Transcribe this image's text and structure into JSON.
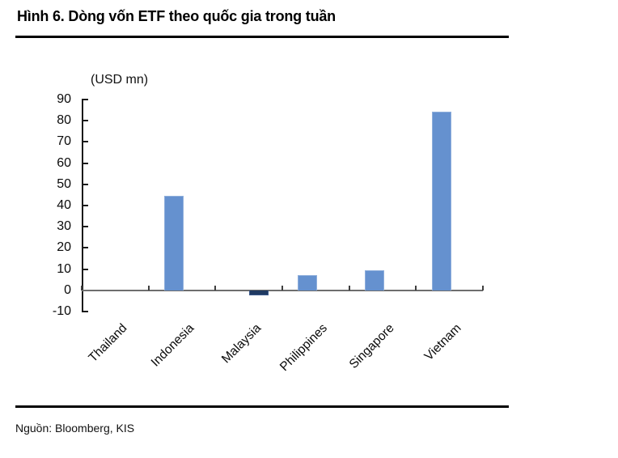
{
  "header": {
    "title": "Hình 6. Dòng vốn ETF theo quốc gia trong tuần"
  },
  "footer": {
    "source": "Nguồn: Bloomberg, KIS"
  },
  "colors": {
    "bar_positive": "#6591cf",
    "bar_negative": "#203a62",
    "axis": "#1a1a1a",
    "baseline": "#6e6e6e",
    "rule": "#000000"
  },
  "chart_data": {
    "type": "bar",
    "title": "Hình 6. Dòng vốn ETF theo quốc gia trong tuần",
    "unit": "(USD mn)",
    "categories": [
      "Thailand",
      "Indonesia",
      "Malaysia",
      "Philippines",
      "Singapore",
      "Vietnam"
    ],
    "values": [
      0,
      44.5,
      -2.5,
      7.3,
      9.6,
      84.3
    ],
    "bar_colors": [
      "#6591cf",
      "#6591cf",
      "#203a62",
      "#6591cf",
      "#6591cf",
      "#6591cf"
    ],
    "xlabel": "",
    "ylabel": "(USD mn)",
    "ylim": [
      -10,
      90
    ],
    "y_tick_step": 10,
    "y_tick_labels": [
      "90",
      "80",
      "70",
      "60",
      "50",
      "40",
      "30",
      "20",
      "10",
      "0",
      "-10"
    ],
    "grid": false,
    "legend": false
  }
}
